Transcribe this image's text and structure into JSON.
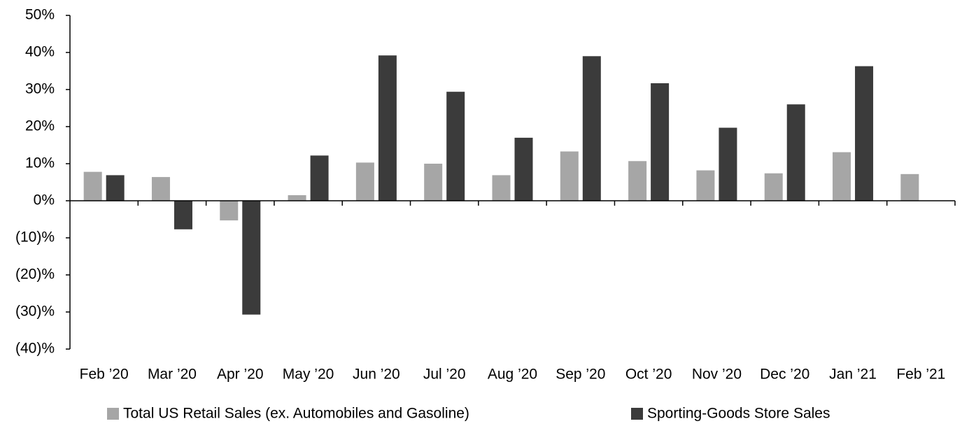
{
  "chart_data": {
    "type": "bar",
    "categories": [
      "Feb ’20",
      "Mar ’20",
      "Apr ’20",
      "May ’20",
      "Jun ’20",
      "Jul ’20",
      "Aug ’20",
      "Sep ’20",
      "Oct ’20",
      "Nov ’20",
      "Dec ’20",
      "Jan ’21",
      "Feb ’21"
    ],
    "series": [
      {
        "name": "Total US Retail Sales (ex. Automobiles and Gasoline)",
        "color": "#a6a6a6",
        "values": [
          7.8,
          6.4,
          -5.3,
          1.5,
          10.3,
          10.0,
          6.9,
          13.3,
          10.7,
          8.2,
          7.4,
          13.1,
          7.2
        ]
      },
      {
        "name": "Sporting-Goods Store Sales",
        "color": "#3b3b3b",
        "values": [
          6.9,
          -7.7,
          -30.7,
          12.2,
          39.2,
          29.4,
          17.0,
          39.0,
          31.7,
          19.7,
          26.0,
          36.3,
          null
        ]
      }
    ],
    "ylim": [
      -40,
      50
    ],
    "yticks": [
      {
        "value": 50,
        "label": "50%"
      },
      {
        "value": 40,
        "label": "40%"
      },
      {
        "value": 30,
        "label": "30%"
      },
      {
        "value": 20,
        "label": "20%"
      },
      {
        "value": 10,
        "label": "10%"
      },
      {
        "value": 0,
        "label": "0%"
      },
      {
        "value": -10,
        "label": "(10)%"
      },
      {
        "value": -20,
        "label": "(20)%"
      },
      {
        "value": -30,
        "label": "(30)%"
      },
      {
        "value": -40,
        "label": "(40)%"
      }
    ],
    "grid": false,
    "legend": "bottom"
  }
}
